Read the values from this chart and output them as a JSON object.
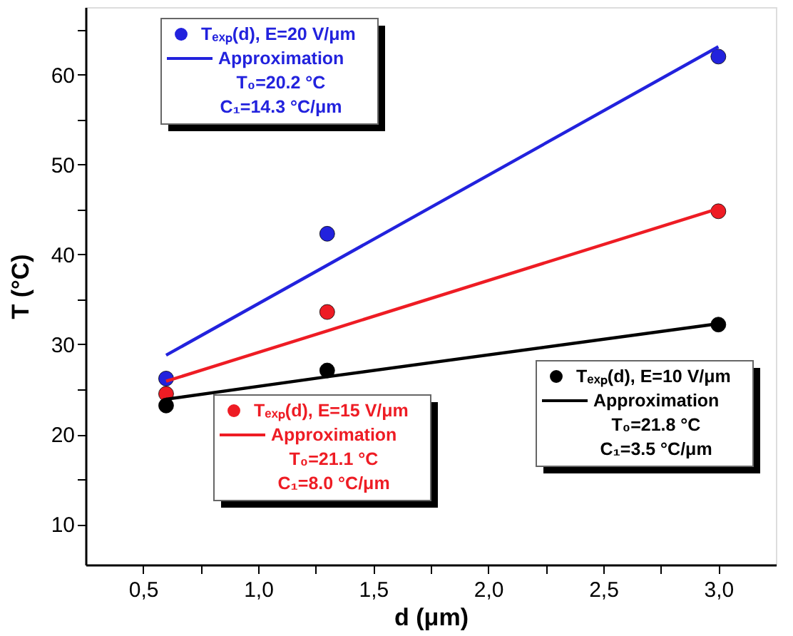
{
  "chart_data": {
    "type": "scatter",
    "xlabel": "d (μm)",
    "ylabel": "T (°C)",
    "x": [
      0.6,
      1.3,
      3.0
    ],
    "series": [
      {
        "name": "Tₑₓₚ(d), E=20 V/μm",
        "color": "#2222dd",
        "values": [
          26.2,
          42.3,
          62.0
        ]
      },
      {
        "name": "Approximation",
        "type": "line",
        "marker": "none",
        "color": "#2222dd",
        "values": [
          28.8,
          38.8,
          63.1
        ]
      },
      {
        "name": "Tₑₓₚ(d), E=15 V/μm",
        "color": "#ee1c24",
        "values": [
          24.5,
          33.6,
          44.8
        ]
      },
      {
        "name": "Approximation",
        "type": "line",
        "marker": "none",
        "color": "#ee1c24",
        "values": [
          25.9,
          31.5,
          45.1
        ]
      },
      {
        "name": "Tₑₓₚ(d), E=10 V/μm",
        "color": "#000000",
        "values": [
          23.2,
          27.1,
          32.2
        ]
      },
      {
        "name": "Approximation",
        "type": "line",
        "marker": "none",
        "color": "#000000",
        "values": [
          23.9,
          26.4,
          32.3
        ]
      }
    ],
    "legend": [
      "top left",
      "bottom left",
      "bottom right"
    ],
    "annotations": [
      "T₀=20.2 °C",
      "C₁=14.3 °C/μm",
      "T₀=21.1 °C",
      "C₁=8.0 °C/μm",
      "T₀=21.8 °C",
      "C₁=3.5 °C/μm"
    ],
    "xlim": [
      0.25,
      3.25
    ],
    "ylim": [
      5.5,
      67.5
    ],
    "xticks": [
      {
        "value": 0.5,
        "label": "0,5"
      },
      {
        "value": 0.75,
        "label": null
      },
      {
        "value": 1.0,
        "label": "1,0"
      },
      {
        "value": 1.25,
        "label": null
      },
      {
        "value": 1.5,
        "label": "1,5"
      },
      {
        "value": 1.75,
        "label": null
      },
      {
        "value": 2.0,
        "label": "2,0"
      },
      {
        "value": 2.25,
        "label": null
      },
      {
        "value": 2.5,
        "label": "2,5"
      },
      {
        "value": 2.75,
        "label": null
      },
      {
        "value": 3.0,
        "label": "3,0"
      }
    ],
    "yticks": [
      10,
      {
        "value": 15,
        "label": null
      },
      20,
      {
        "value": 25,
        "label": null
      },
      30,
      {
        "value": 35,
        "label": null
      },
      40,
      {
        "value": 45,
        "label": null
      },
      50,
      {
        "value": 55,
        "label": null
      },
      60,
      {
        "value": 65,
        "label": null
      }
    ],
    "marker": "circle",
    "grid": false
  }
}
